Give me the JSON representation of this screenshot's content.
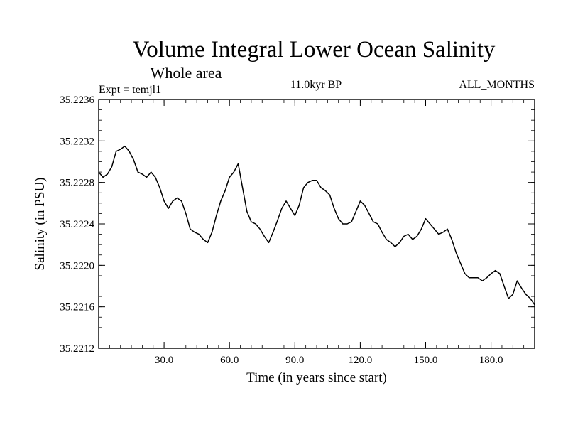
{
  "chart_data": {
    "type": "line",
    "title": "Volume Integral Lower Ocean Salinity",
    "subtitle": "Whole area",
    "experiment": "Expt = temjl1",
    "period": "11.0kyr BP",
    "months": "ALL_MONTHS",
    "xlabel": "Time (in years since start)",
    "ylabel": "Salinity (in PSU)",
    "xlim": [
      0,
      200
    ],
    "ylim": [
      35.2212,
      35.2236
    ],
    "x_ticks": [
      30,
      60,
      90,
      120,
      150,
      180
    ],
    "x_tick_labels": [
      "30.0",
      "60.0",
      "90.0",
      "120.0",
      "150.0",
      "180.0"
    ],
    "y_ticks": [
      35.2212,
      35.2216,
      35.222,
      35.2224,
      35.2228,
      35.2232,
      35.2236
    ],
    "y_tick_labels": [
      "35.2212",
      "35.2216",
      "35.2220",
      "35.2224",
      "35.2228",
      "35.2232",
      "35.2236"
    ],
    "grid": false,
    "series": [
      {
        "name": "salinity",
        "x": [
          0,
          2,
          4,
          6,
          8,
          10,
          12,
          14,
          16,
          18,
          20,
          22,
          24,
          26,
          28,
          30,
          32,
          34,
          36,
          38,
          40,
          42,
          44,
          46,
          48,
          50,
          52,
          54,
          56,
          58,
          60,
          62,
          64,
          66,
          68,
          70,
          72,
          74,
          76,
          78,
          80,
          82,
          84,
          86,
          88,
          90,
          92,
          94,
          96,
          98,
          100,
          102,
          104,
          106,
          108,
          110,
          112,
          114,
          116,
          118,
          120,
          122,
          124,
          126,
          128,
          130,
          132,
          134,
          136,
          138,
          140,
          142,
          144,
          146,
          148,
          150,
          152,
          154,
          156,
          158,
          160,
          162,
          164,
          166,
          168,
          170,
          172,
          174,
          176,
          178,
          180,
          182,
          184,
          186,
          188,
          190,
          192,
          194,
          196,
          198,
          200
        ],
        "values": [
          35.2229,
          35.22285,
          35.22288,
          35.22295,
          35.2231,
          35.22312,
          35.22315,
          35.2231,
          35.22302,
          35.2229,
          35.22288,
          35.22285,
          35.2229,
          35.22285,
          35.22275,
          35.22262,
          35.22255,
          35.22262,
          35.22265,
          35.22262,
          35.2225,
          35.22235,
          35.22232,
          35.2223,
          35.22225,
          35.22222,
          35.22232,
          35.22248,
          35.22262,
          35.22272,
          35.22285,
          35.2229,
          35.22298,
          35.22275,
          35.22252,
          35.22242,
          35.2224,
          35.22235,
          35.22228,
          35.22222,
          35.22232,
          35.22243,
          35.22255,
          35.22262,
          35.22255,
          35.22248,
          35.22258,
          35.22275,
          35.2228,
          35.22282,
          35.22282,
          35.22275,
          35.22272,
          35.22268,
          35.22255,
          35.22245,
          35.2224,
          35.2224,
          35.22242,
          35.22252,
          35.22262,
          35.22258,
          35.2225,
          35.22242,
          35.2224,
          35.22232,
          35.22225,
          35.22222,
          35.22218,
          35.22222,
          35.22228,
          35.2223,
          35.22225,
          35.22228,
          35.22235,
          35.22245,
          35.2224,
          35.22235,
          35.2223,
          35.22232,
          35.22235,
          35.22225,
          35.22212,
          35.22202,
          35.22192,
          35.22188,
          35.22188,
          35.22188,
          35.22185,
          35.22188,
          35.22192,
          35.22195,
          35.22192,
          35.2218,
          35.22168,
          35.22172,
          35.22185,
          35.22178,
          35.22172,
          35.22168,
          35.22162
        ]
      }
    ]
  }
}
